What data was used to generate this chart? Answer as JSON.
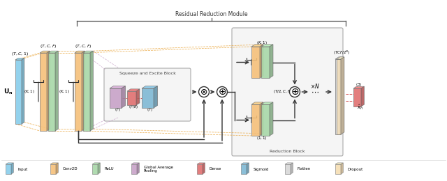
{
  "title": "Residual Reduction Module",
  "bg_color": "#ffffff",
  "colors": {
    "input": "#87CEEB",
    "conv2d": "#F5C07A",
    "relu": "#A8D8A8",
    "gap": "#C8A2C8",
    "dense": "#E07070",
    "sigmoid": "#7EB8D4",
    "flatten": "#D8D8D8",
    "dropout": "#F5DEB3"
  },
  "legend": [
    {
      "label": "Input",
      "color": "#87CEEB"
    },
    {
      "label": "Conv2D",
      "color": "#F5C07A"
    },
    {
      "label": "ReLU",
      "color": "#A8D8A8"
    },
    {
      "label": "Global Average\nPooling",
      "color": "#C8A2C8"
    },
    {
      "label": "Dense",
      "color": "#E07070"
    },
    {
      "label": "Sigmoid",
      "color": "#7EB8D4"
    },
    {
      "label": "Flatten",
      "color": "#D8D8D8"
    },
    {
      "label": "Dropout",
      "color": "#F5DEB3"
    }
  ]
}
